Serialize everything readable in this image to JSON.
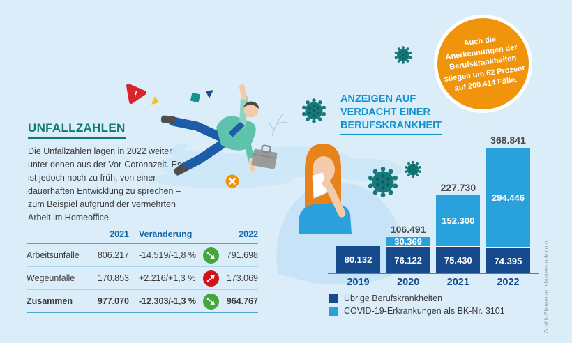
{
  "page": {
    "background": "#dcedfa",
    "credit": "Grafik-Elemente: shutterstock.com"
  },
  "colors": {
    "teal_heading": "#0d7b74",
    "blue_heading": "#1492cc",
    "dark_navy": "#174a8c",
    "light_blue": "#29a2dc",
    "orange": "#f0940c",
    "green_badge": "#44a739",
    "red_badge": "#d01317"
  },
  "unfallzahlen": {
    "title": "UNFALLZAHLEN",
    "body": "Die Unfallzahlen lagen in 2022 weiter unter denen aus der Vor-Coronazeit. Es ist jedoch noch zu früh, von einer dauerhaften Entwicklung zu sprechen – zum Beispiel aufgrund der vermehrten Arbeit im Homeoffice.",
    "table": {
      "headers": {
        "y2021": "2021",
        "change": "Veränderung",
        "y2022": "2022"
      },
      "rows": [
        {
          "label": "Arbeitsunfälle",
          "y2021": "806.217",
          "change": "-14.519/-1,8 %",
          "trend": "down",
          "y2022": "791.698"
        },
        {
          "label": "Wegeunfälle",
          "y2021": "170.853",
          "change": "+2.216/+1,3 %",
          "trend": "up",
          "y2022": "173.069"
        },
        {
          "label": "Zusammen",
          "y2021": "977.070",
          "change": "-12.303/-1,3 %",
          "trend": "down",
          "y2022": "964.767"
        }
      ]
    }
  },
  "berufskrankheit": {
    "heading_lines": [
      "ANZEIGEN AUF",
      "VERDACHT EINER",
      "BERUFSKRANKHEIT"
    ],
    "badge_lines": [
      "Auch die",
      "Anerkennungen der",
      "Berufskrankheiten",
      "stiegen um 62 Prozent",
      "auf 200.414 Fälle."
    ]
  },
  "chart_data": {
    "type": "bar",
    "stacked": true,
    "title": "Anzeigen auf Verdacht einer Berufskrankheit",
    "categories": [
      "2019",
      "2020",
      "2021",
      "2022"
    ],
    "series": [
      {
        "name": "Übrige Berufskrankheiten",
        "color": "#174a8c",
        "values": [
          80132,
          76122,
          75430,
          74395
        ],
        "labels": [
          "80.132",
          "76.122",
          "75.430",
          "74.395"
        ]
      },
      {
        "name": "COVID-19-Erkrankungen als BK-Nr. 3101",
        "color": "#29a2dc",
        "values": [
          0,
          30369,
          152300,
          294446
        ],
        "labels": [
          "",
          "30.369",
          "152.300",
          "294.446"
        ]
      }
    ],
    "totals": [
      80132,
      106491,
      227730,
      368841
    ],
    "total_labels": [
      "",
      "106.491",
      "227.730",
      "368.841"
    ],
    "xlabel": "",
    "ylabel": "",
    "legend_position": "bottom",
    "grid": false
  }
}
